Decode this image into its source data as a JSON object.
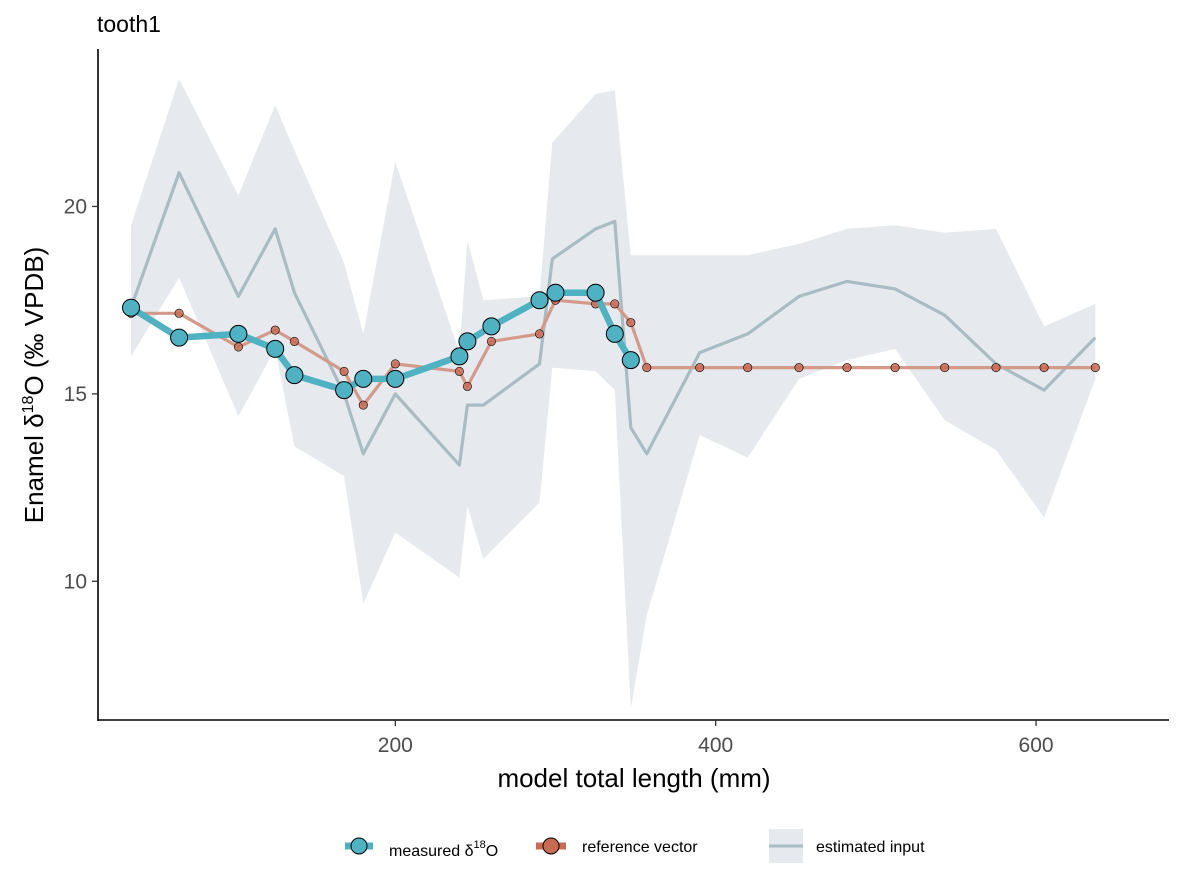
{
  "chart_data": {
    "type": "line",
    "title": "tooth1",
    "xlabel": "model total length (mm)",
    "ylabel_parts": {
      "pre": "Enamel δ",
      "sup": "18",
      "post": "O (‰ VPDB)"
    },
    "xlim": [
      15,
      683
    ],
    "ylim": [
      6.3,
      24.2
    ],
    "x_ticks": [
      200,
      400,
      600
    ],
    "y_ticks": [
      10,
      15,
      20
    ],
    "grid": false,
    "legend_position": "bottom",
    "colors": {
      "measured": "#4fb2c3",
      "measured_stroke": "#000000",
      "reference": "#d39a8a",
      "reference_fill": "#c96a52",
      "estimated_line": "#a7bcc3",
      "estimated_band": "#e6eaee"
    },
    "legend": [
      {
        "key": "measured",
        "parts": {
          "pre": "measured δ",
          "sup": "18",
          "post": "O"
        }
      },
      {
        "key": "reference",
        "parts": {
          "pre": "reference vector",
          "sup": "",
          "post": ""
        }
      },
      {
        "key": "estimated",
        "parts": {
          "pre": "estimated input",
          "sup": "",
          "post": ""
        }
      }
    ],
    "series": [
      {
        "key": "estimated",
        "type": "line-with-band",
        "x": [
          35,
          65,
          102,
          125,
          137,
          168,
          180,
          200,
          240,
          245,
          255,
          290,
          298,
          325,
          337,
          347,
          357,
          390,
          420,
          452,
          482,
          512,
          543,
          575,
          605,
          637
        ],
        "y": [
          17.3,
          20.9,
          17.6,
          19.4,
          17.7,
          15.0,
          13.4,
          15.0,
          13.1,
          14.7,
          14.7,
          15.8,
          18.6,
          19.4,
          19.6,
          14.1,
          13.4,
          16.1,
          16.6,
          17.6,
          18.0,
          17.8,
          17.1,
          15.8,
          15.1,
          16.5
        ],
        "lower": [
          16.0,
          18.1,
          14.4,
          16.2,
          13.6,
          12.8,
          9.4,
          11.3,
          10.1,
          12.0,
          10.6,
          12.1,
          15.7,
          15.6,
          15.1,
          6.6,
          9.1,
          13.9,
          13.3,
          15.4,
          15.9,
          16.2,
          14.3,
          13.5,
          11.7,
          15.4
        ],
        "upper": [
          19.5,
          23.4,
          20.3,
          22.7,
          21.5,
          18.5,
          16.6,
          21.2,
          16.1,
          19.1,
          17.5,
          17.6,
          21.7,
          23.0,
          23.1,
          18.7,
          18.7,
          18.7,
          18.7,
          19.0,
          19.4,
          19.5,
          19.3,
          19.4,
          16.8,
          17.4
        ]
      },
      {
        "key": "reference",
        "type": "line-points",
        "x": [
          35,
          65,
          102,
          125,
          137,
          168,
          180,
          200,
          240,
          245,
          260,
          290,
          300,
          325,
          337,
          347,
          357,
          390,
          420,
          452,
          482,
          512,
          543,
          575,
          605,
          637
        ],
        "y": [
          17.15,
          17.15,
          16.25,
          16.7,
          16.4,
          15.6,
          14.7,
          15.8,
          15.6,
          15.2,
          16.4,
          16.6,
          17.5,
          17.4,
          17.4,
          16.9,
          15.7,
          15.7,
          15.7,
          15.7,
          15.7,
          15.7,
          15.7,
          15.7,
          15.7,
          15.7
        ]
      },
      {
        "key": "measured",
        "type": "line-points",
        "x": [
          35,
          65,
          102,
          125,
          137,
          168,
          180,
          200,
          240,
          245,
          260,
          290,
          300,
          325,
          337,
          347
        ],
        "y": [
          17.3,
          16.5,
          16.6,
          16.2,
          15.5,
          15.1,
          15.4,
          15.4,
          16.0,
          16.4,
          16.8,
          17.5,
          17.7,
          17.7,
          16.6,
          15.9
        ]
      }
    ]
  }
}
